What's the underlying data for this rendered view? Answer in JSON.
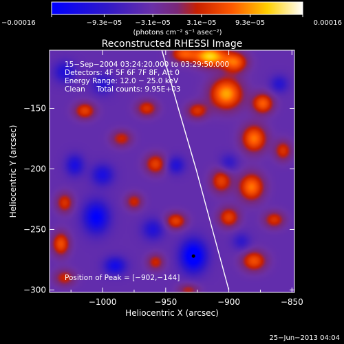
{
  "chart_data": {
    "type": "heatmap",
    "title": "Reconstructed RHESSI Image",
    "xlabel": "Heliocentric X (arcsec)",
    "ylabel": "Heliocentric Y (arcsec)",
    "xlim": [
      -1042,
      -848
    ],
    "ylim": [
      -302,
      -102
    ],
    "x_ticks": [
      -1000,
      -950,
      -900,
      -850
    ],
    "x_tick_labels": [
      "−1000",
      "−950",
      "−900",
      "−850"
    ],
    "y_ticks": [
      -150,
      -200,
      -250,
      -300
    ],
    "y_tick_labels": [
      "−150",
      "−200",
      "−250",
      "−300"
    ],
    "colorbar": {
      "ticks": [
        -0.00016,
        -9.3e-05,
        -3.1e-05,
        3.1e-05,
        9.3e-05,
        0.00016
      ],
      "tick_labels": [
        "−0.00016",
        "−9.3e−05",
        "−3.1e−05",
        "3.1e−05",
        "9.3e−05",
        "0.00016"
      ],
      "units_label": "(photons cm⁻² s⁻¹ asec⁻²)",
      "range": [
        -0.00016,
        0.00016
      ]
    },
    "annotations": {
      "time_range": "15−Sep−2004 03:24:20.000 to 03:29:50.000",
      "detectors": "Detectors: 4F 5F 6F 7F 8F, Att 0",
      "energy": "Energy Range: 12.0 − 25.0 keV",
      "clean": "Clean     Total counts: 9.95E+03",
      "peak": "Position of Peak = [−902,−144]"
    },
    "peak_position": [
      -902,
      -144
    ],
    "limb": [
      [
        -953,
        -102
      ],
      [
        -940,
        -150
      ],
      [
        -926,
        -200
      ],
      [
        -913,
        -250
      ],
      [
        -900,
        -300
      ]
    ],
    "blobs": [
      {
        "x": -936,
        "y": -105,
        "amp": 0.0001,
        "sx": 7,
        "sy": 5
      },
      {
        "x": -915,
        "y": -107,
        "amp": 0.00016,
        "sx": 9,
        "sy": 6
      },
      {
        "x": -895,
        "y": -112,
        "amp": 0.00011,
        "sx": 7,
        "sy": 6
      },
      {
        "x": -902,
        "y": -138,
        "amp": 0.00014,
        "sx": 9,
        "sy": 9
      },
      {
        "x": -873,
        "y": -146,
        "amp": 0.00011,
        "sx": 6,
        "sy": 6
      },
      {
        "x": -925,
        "y": -152,
        "amp": 8e-05,
        "sx": 6,
        "sy": 5
      },
      {
        "x": -880,
        "y": -175,
        "amp": 0.00012,
        "sx": 7,
        "sy": 8
      },
      {
        "x": -857,
        "y": -185,
        "amp": 8e-05,
        "sx": 5,
        "sy": 6
      },
      {
        "x": -882,
        "y": -215,
        "amp": 0.00012,
        "sx": 7,
        "sy": 8
      },
      {
        "x": -906,
        "y": -210,
        "amp": 9e-05,
        "sx": 6,
        "sy": 7
      },
      {
        "x": -900,
        "y": -240,
        "amp": 9e-05,
        "sx": 6,
        "sy": 6
      },
      {
        "x": -864,
        "y": -242,
        "amp": 8e-05,
        "sx": 6,
        "sy": 5
      },
      {
        "x": -880,
        "y": -276,
        "amp": 0.0001,
        "sx": 7,
        "sy": 6
      },
      {
        "x": -1014,
        "y": -152,
        "amp": 9e-05,
        "sx": 6,
        "sy": 5
      },
      {
        "x": -965,
        "y": -150,
        "amp": 8e-05,
        "sx": 6,
        "sy": 5
      },
      {
        "x": -985,
        "y": -175,
        "amp": 7e-05,
        "sx": 6,
        "sy": 5
      },
      {
        "x": -958,
        "y": -196,
        "amp": 9e-05,
        "sx": 6,
        "sy": 6
      },
      {
        "x": -1030,
        "y": -228,
        "amp": 8e-05,
        "sx": 5,
        "sy": 6
      },
      {
        "x": -975,
        "y": -227,
        "amp": 7e-05,
        "sx": 5,
        "sy": 5
      },
      {
        "x": -942,
        "y": -243,
        "amp": 9e-05,
        "sx": 6,
        "sy": 5
      },
      {
        "x": -1033,
        "y": -262,
        "amp": 0.0001,
        "sx": 5,
        "sy": 7
      },
      {
        "x": -958,
        "y": -277,
        "amp": 7e-05,
        "sx": 5,
        "sy": 5
      },
      {
        "x": -1030,
        "y": -290,
        "amp": 7e-05,
        "sx": 6,
        "sy": 5
      },
      {
        "x": -932,
        "y": -300,
        "amp": 6e-05,
        "sx": 6,
        "sy": 4
      },
      {
        "x": -928,
        "y": -272,
        "amp": -0.00015,
        "sx": 7,
        "sy": 9
      },
      {
        "x": -1005,
        "y": -240,
        "amp": -0.00012,
        "sx": 7,
        "sy": 9
      },
      {
        "x": -1000,
        "y": -205,
        "amp": -8e-05,
        "sx": 6,
        "sy": 6
      },
      {
        "x": -1022,
        "y": -197,
        "amp": -8e-05,
        "sx": 5,
        "sy": 6
      },
      {
        "x": -960,
        "y": -250,
        "amp": -7e-05,
        "sx": 6,
        "sy": 6
      },
      {
        "x": -942,
        "y": -197,
        "amp": -7e-05,
        "sx": 5,
        "sy": 5
      },
      {
        "x": -990,
        "y": -280,
        "amp": -9e-05,
        "sx": 6,
        "sy": 5
      },
      {
        "x": -1030,
        "y": -120,
        "amp": -7e-05,
        "sx": 6,
        "sy": 6
      },
      {
        "x": -1000,
        "y": -130,
        "amp": -6e-05,
        "sx": 6,
        "sy": 6
      },
      {
        "x": -860,
        "y": -130,
        "amp": -6e-05,
        "sx": 5,
        "sy": 5
      },
      {
        "x": -900,
        "y": -195,
        "amp": -5e-05,
        "sx": 5,
        "sy": 5
      },
      {
        "x": -890,
        "y": -260,
        "amp": -5e-05,
        "sx": 5,
        "sy": 5
      }
    ],
    "background_level": -4e-05
  },
  "footer": {
    "timestamp": "25−Jun−2013 04:04"
  }
}
